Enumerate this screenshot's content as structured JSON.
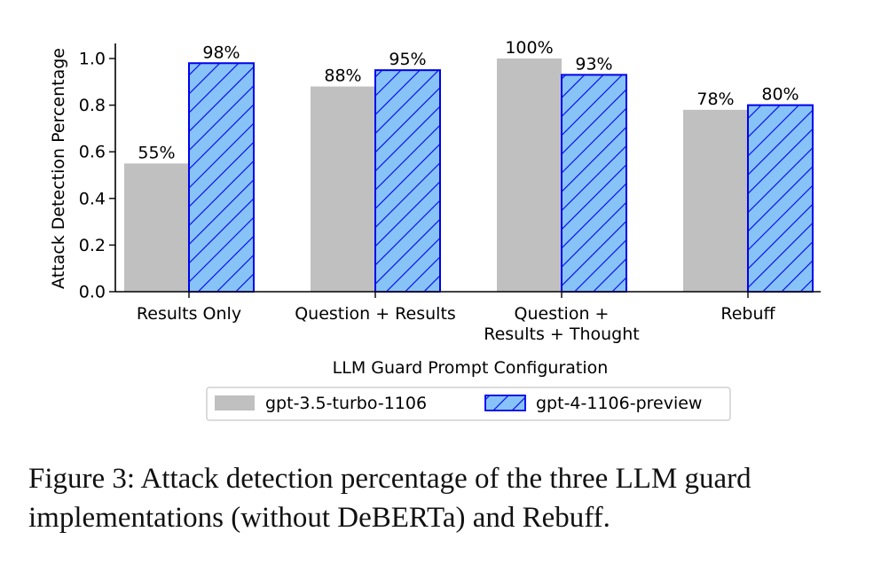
{
  "caption": "Figure 3: Attack detection percentage of the three LLM guard implementations (without DeBERTa) and Rebuff.",
  "chart_data": {
    "type": "bar",
    "title": "",
    "xlabel": "LLM Guard Prompt Configuration",
    "ylabel": "Attack Detection Percentage",
    "categories": [
      [
        "Results Only"
      ],
      [
        "Question + Results"
      ],
      [
        "Question +",
        "Results + Thought"
      ],
      [
        "Rebuff"
      ]
    ],
    "ylim": [
      0,
      1.05
    ],
    "yticks": [
      0.0,
      0.2,
      0.4,
      0.6,
      0.8,
      1.0
    ],
    "ytick_labels": [
      "0.0",
      "0.2",
      "0.4",
      "0.6",
      "0.8",
      "1.0"
    ],
    "series": [
      {
        "name": "gpt-3.5-turbo-1106",
        "values": [
          0.55,
          0.88,
          1.0,
          0.78
        ],
        "labels": [
          "55%",
          "88%",
          "100%",
          "78%"
        ],
        "color": "#c0c0c0",
        "hatch": false
      },
      {
        "name": "gpt-4-1106-preview",
        "values": [
          0.98,
          0.95,
          0.93,
          0.8
        ],
        "labels": [
          "98%",
          "95%",
          "93%",
          "80%"
        ],
        "color": "#87c3f7",
        "edge": "#0000ee",
        "hatch": true
      }
    ],
    "legend_position": "bottom-center",
    "grid": false
  }
}
